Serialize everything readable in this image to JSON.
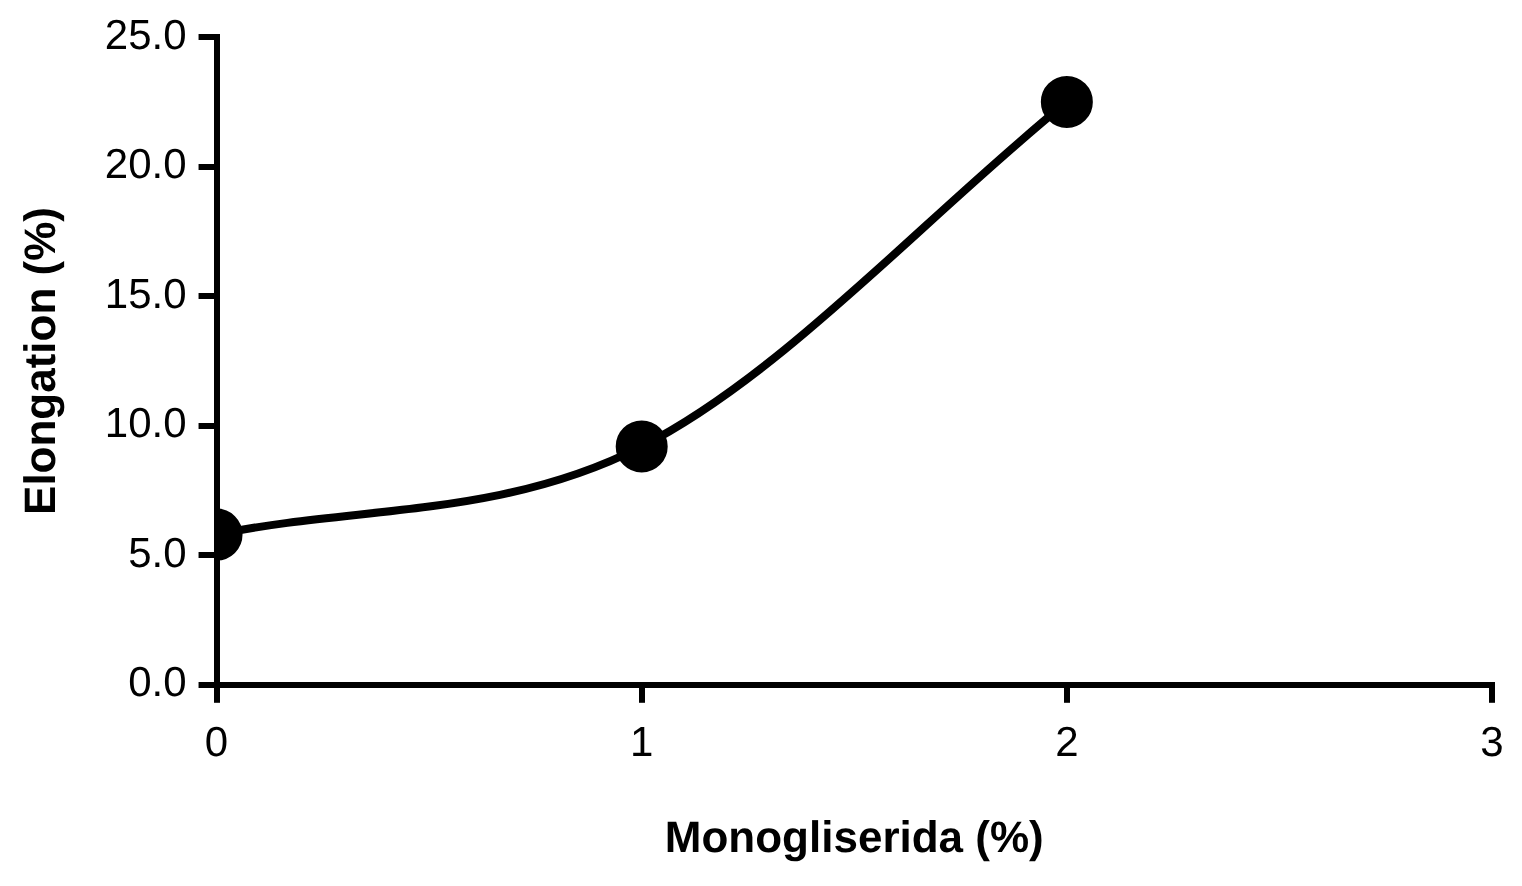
{
  "chart_data": {
    "type": "line",
    "xlabel": "Monogliserida (%)",
    "ylabel": "Elongation (%)",
    "x": [
      0,
      1,
      2
    ],
    "series": [
      {
        "color": "#000000",
        "values": [
          5.8,
          9.2,
          22.5
        ]
      }
    ],
    "xlim": [
      0,
      3
    ],
    "xticks": [
      0,
      1,
      2,
      3
    ],
    "ylim": [
      0,
      25
    ],
    "yticks": [
      {
        "value": 0,
        "label": "0.0"
      },
      {
        "value": 5,
        "label": "5.0"
      },
      {
        "value": 10,
        "label": "10.0"
      },
      {
        "value": 15,
        "label": "15.0"
      },
      {
        "value": 20,
        "label": "20.0"
      },
      {
        "value": 25,
        "label": "25.0"
      }
    ],
    "grid": false,
    "legend": false,
    "marker": "circle",
    "line_style": "solid"
  }
}
